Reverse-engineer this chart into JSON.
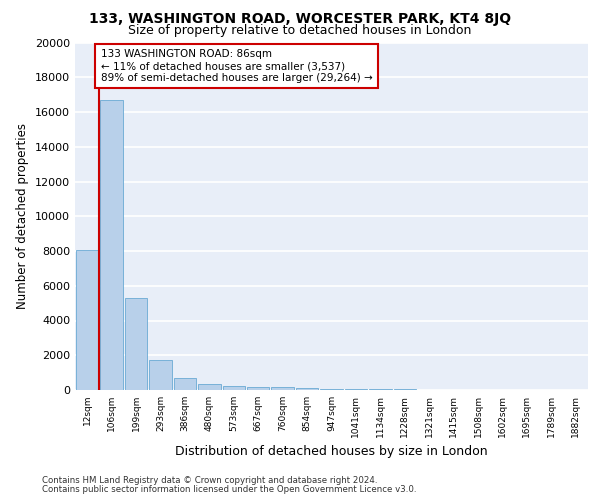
{
  "title_line1": "133, WASHINGTON ROAD, WORCESTER PARK, KT4 8JQ",
  "title_line2": "Size of property relative to detached houses in London",
  "xlabel": "Distribution of detached houses by size in London",
  "ylabel": "Number of detached properties",
  "bar_labels": [
    "12sqm",
    "106sqm",
    "199sqm",
    "293sqm",
    "386sqm",
    "480sqm",
    "573sqm",
    "667sqm",
    "760sqm",
    "854sqm",
    "947sqm",
    "1041sqm",
    "1134sqm",
    "1228sqm",
    "1321sqm",
    "1415sqm",
    "1508sqm",
    "1602sqm",
    "1695sqm",
    "1789sqm",
    "1882sqm"
  ],
  "bar_values": [
    8050,
    16700,
    5300,
    1750,
    700,
    350,
    250,
    190,
    185,
    110,
    75,
    52,
    42,
    33,
    27,
    22,
    17,
    13,
    10,
    7,
    4
  ],
  "bar_color": "#b8d0ea",
  "bar_edge_color": "#6aaad4",
  "bg_color": "#e8eef8",
  "grid_color": "#ffffff",
  "vline_x": 0.5,
  "vline_color": "#cc0000",
  "annotation_text": "133 WASHINGTON ROAD: 86sqm\n← 11% of detached houses are smaller (3,537)\n89% of semi-detached houses are larger (29,264) →",
  "annotation_box_color": "#ffffff",
  "annotation_box_edge": "#cc0000",
  "ylim": [
    0,
    20000
  ],
  "yticks": [
    0,
    2000,
    4000,
    6000,
    8000,
    10000,
    12000,
    14000,
    16000,
    18000,
    20000
  ],
  "footnote1": "Contains HM Land Registry data © Crown copyright and database right 2024.",
  "footnote2": "Contains public sector information licensed under the Open Government Licence v3.0."
}
